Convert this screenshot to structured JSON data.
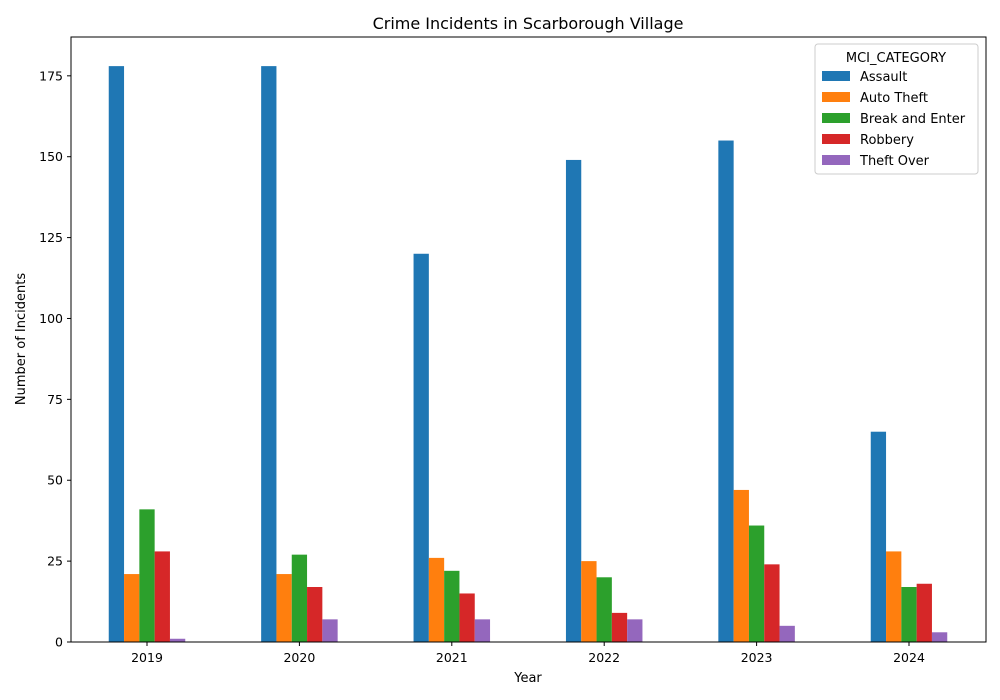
{
  "chart_data": {
    "type": "bar",
    "title": "Crime Incidents in Scarborough Village",
    "xlabel": "Year",
    "ylabel": "Number of Incidents",
    "categories": [
      "2019",
      "2020",
      "2021",
      "2022",
      "2023",
      "2024"
    ],
    "ylim": [
      0,
      187
    ],
    "yticks": [
      0,
      25,
      50,
      75,
      100,
      125,
      150,
      175
    ],
    "legend_title": "MCI_CATEGORY",
    "legend_position": "top-right",
    "grid": false,
    "series": [
      {
        "name": "Assault",
        "color": "#1f77b4",
        "values": [
          178,
          178,
          120,
          149,
          155,
          65
        ]
      },
      {
        "name": "Auto Theft",
        "color": "#ff7f0e",
        "values": [
          21,
          21,
          26,
          25,
          47,
          28
        ]
      },
      {
        "name": "Break and Enter",
        "color": "#2ca02c",
        "values": [
          41,
          27,
          22,
          20,
          36,
          17
        ]
      },
      {
        "name": "Robbery",
        "color": "#d62728",
        "values": [
          28,
          17,
          15,
          9,
          24,
          18
        ]
      },
      {
        "name": "Theft Over",
        "color": "#9467bd",
        "values": [
          1,
          7,
          7,
          7,
          5,
          3
        ]
      }
    ]
  }
}
